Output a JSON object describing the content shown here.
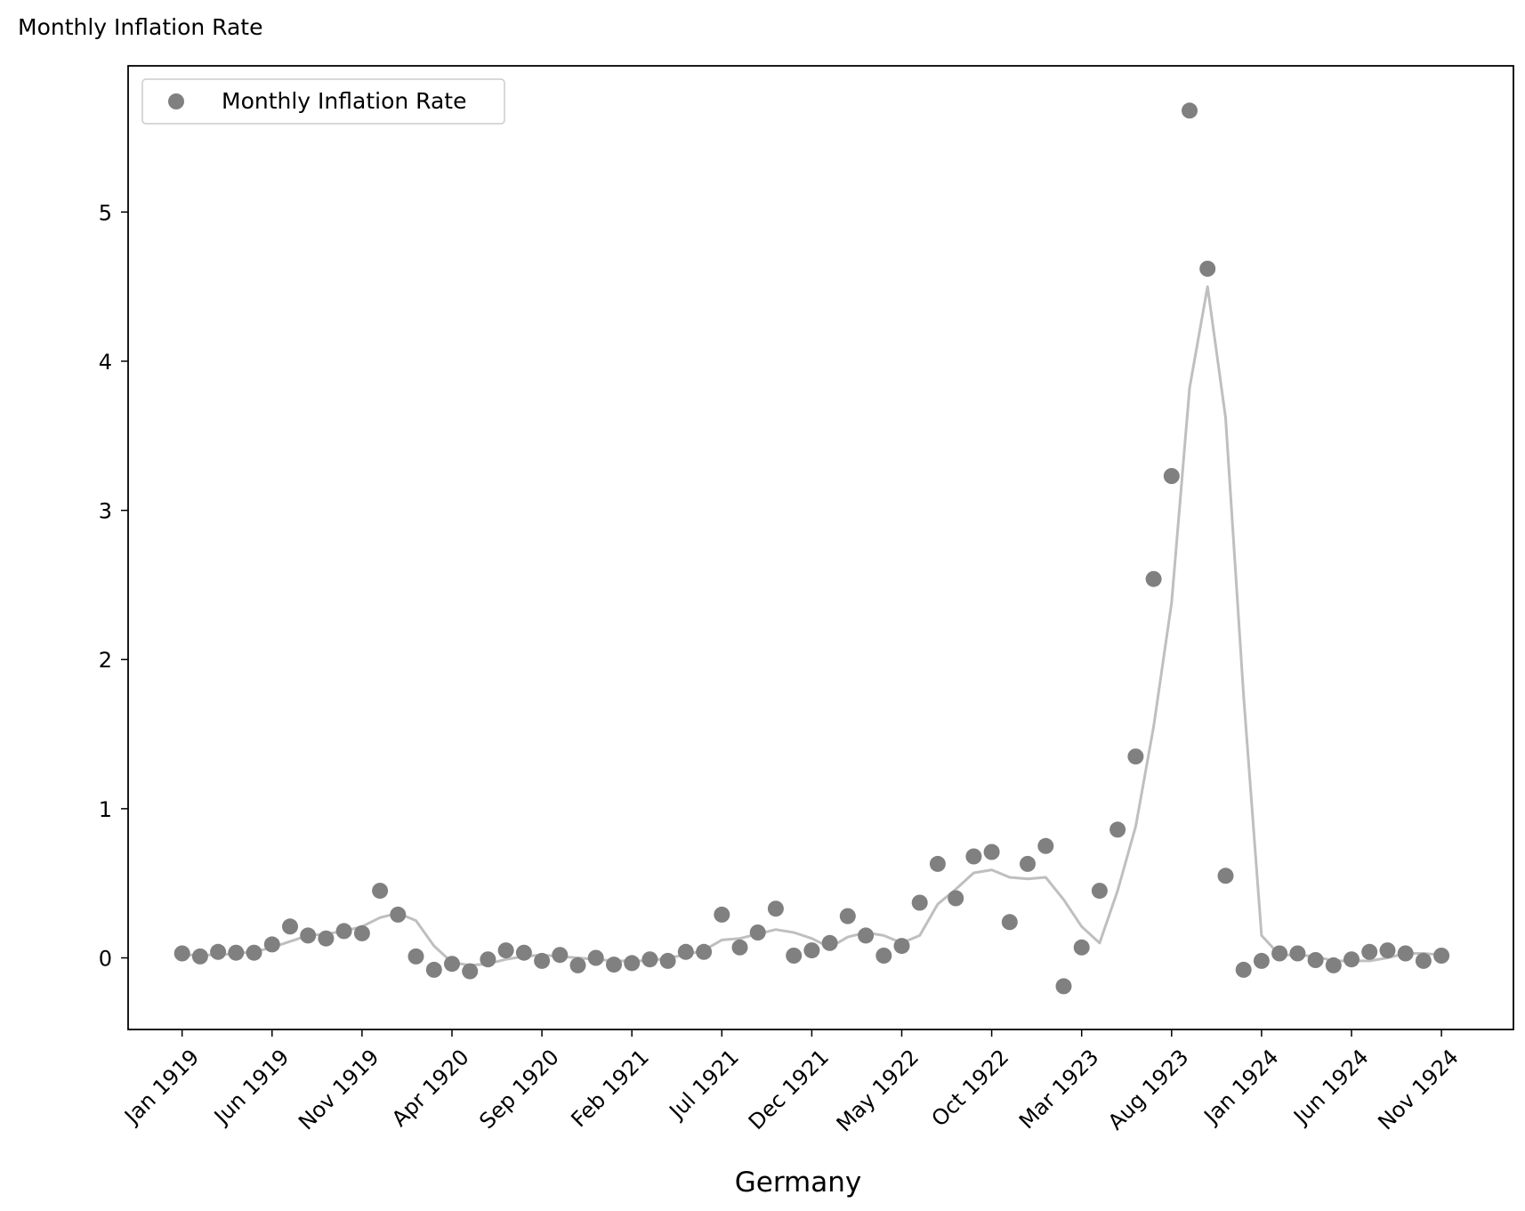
{
  "chart_data": {
    "type": "scatter",
    "title": "Monthly Inflation Rate",
    "xlabel": "Germany",
    "ylabel": "",
    "x_tick_labels": [
      "Jan 1919",
      "Jun 1919",
      "Nov 1919",
      "Apr 1920",
      "Sep 1920",
      "Feb 1921",
      "Jul 1921",
      "Dec 1921",
      "May 1922",
      "Oct 1922",
      "Mar 1923",
      "Aug 1923",
      "Jan 1924",
      "Jun 1924",
      "Nov 1924"
    ],
    "y_ticks": [
      0,
      1,
      2,
      3,
      4,
      5
    ],
    "ylim": [
      -0.48,
      5.98
    ],
    "xlim": [
      "1918-10",
      "1925-03"
    ],
    "grid": false,
    "legend": {
      "position": "top-left",
      "entries": [
        "Monthly Inflation Rate"
      ]
    },
    "colors": {
      "points": "#808080",
      "trend": "#bfbfbf",
      "axes": "#000000"
    },
    "series": [
      {
        "name": "Monthly Inflation Rate",
        "kind": "scatter",
        "x": [
          "1919-01",
          "1919-02",
          "1919-03",
          "1919-04",
          "1919-05",
          "1919-06",
          "1919-07",
          "1919-08",
          "1919-09",
          "1919-10",
          "1919-11",
          "1919-12",
          "1920-01",
          "1920-02",
          "1920-03",
          "1920-04",
          "1920-05",
          "1920-06",
          "1920-07",
          "1920-08",
          "1920-09",
          "1920-10",
          "1920-11",
          "1920-12",
          "1921-01",
          "1921-02",
          "1921-03",
          "1921-04",
          "1921-05",
          "1921-06",
          "1921-07",
          "1921-08",
          "1921-09",
          "1921-10",
          "1921-11",
          "1921-12",
          "1922-01",
          "1922-02",
          "1922-03",
          "1922-04",
          "1922-05",
          "1922-06",
          "1922-07",
          "1922-08",
          "1922-09",
          "1922-10",
          "1922-11",
          "1922-12",
          "1923-01",
          "1923-02",
          "1923-03",
          "1923-04",
          "1923-05",
          "1923-06",
          "1923-07",
          "1923-08",
          "1923-09",
          "1923-10",
          "1923-11",
          "1923-12",
          "1924-01",
          "1924-02",
          "1924-03",
          "1924-04",
          "1924-05",
          "1924-06",
          "1924-07",
          "1924-08",
          "1924-09",
          "1924-10",
          "1924-11",
          "1924-12"
        ],
        "y": [
          0.03,
          0.01,
          0.04,
          0.035,
          0.035,
          0.09,
          0.21,
          0.15,
          0.13,
          0.18,
          0.165,
          0.45,
          0.29,
          0.01,
          -0.08,
          -0.04,
          -0.09,
          -0.01,
          0.05,
          0.035,
          -0.02,
          0.02,
          -0.05,
          0.0,
          -0.045,
          -0.035,
          -0.01,
          -0.02,
          0.04,
          0.04,
          0.29,
          0.07,
          0.17,
          0.33,
          0.015,
          0.05,
          0.1,
          0.28,
          0.15,
          0.015,
          0.08,
          0.37,
          0.63,
          0.4,
          0.68,
          0.71,
          0.24,
          0.63,
          0.75,
          -0.19,
          0.07,
          0.45,
          0.86,
          1.35,
          2.54,
          3.23,
          5.68,
          4.62,
          0.55,
          -0.08,
          -0.02,
          0.03,
          0.03,
          -0.015,
          -0.05,
          -0.01,
          0.04,
          0.05,
          0.03,
          -0.02,
          0.015,
          null
        ]
      },
      {
        "name": "",
        "kind": "line",
        "x": [
          "1919-01",
          "1919-02",
          "1919-03",
          "1919-04",
          "1919-05",
          "1919-06",
          "1919-07",
          "1919-08",
          "1919-09",
          "1919-10",
          "1919-11",
          "1919-12",
          "1920-01",
          "1920-02",
          "1920-03",
          "1920-04",
          "1920-05",
          "1920-06",
          "1920-07",
          "1920-08",
          "1920-09",
          "1920-10",
          "1920-11",
          "1920-12",
          "1921-01",
          "1921-02",
          "1921-03",
          "1921-04",
          "1921-05",
          "1921-06",
          "1921-07",
          "1921-08",
          "1921-09",
          "1921-10",
          "1921-11",
          "1921-12",
          "1922-01",
          "1922-02",
          "1922-03",
          "1922-04",
          "1922-05",
          "1922-06",
          "1922-07",
          "1922-08",
          "1922-09",
          "1922-10",
          "1922-11",
          "1922-12",
          "1923-01",
          "1923-02",
          "1923-03",
          "1923-04",
          "1923-05",
          "1923-06",
          "1923-07",
          "1923-08",
          "1923-09",
          "1923-10",
          "1923-11",
          "1923-12",
          "1924-01",
          "1924-02",
          "1924-03",
          "1924-04",
          "1924-05",
          "1924-06",
          "1924-07",
          "1924-08",
          "1924-09",
          "1924-10",
          "1924-11",
          "1924-12"
        ],
        "y": [
          0.02,
          0.02,
          0.02,
          0.03,
          0.04,
          0.07,
          0.11,
          0.15,
          0.16,
          0.18,
          0.21,
          0.27,
          0.3,
          0.25,
          0.08,
          -0.03,
          -0.05,
          -0.04,
          -0.01,
          0.01,
          0.02,
          0.01,
          0.0,
          -0.01,
          -0.02,
          -0.02,
          -0.02,
          0.0,
          0.02,
          0.05,
          0.12,
          0.13,
          0.16,
          0.19,
          0.17,
          0.13,
          0.07,
          0.14,
          0.17,
          0.15,
          0.1,
          0.15,
          0.36,
          0.46,
          0.57,
          0.59,
          0.54,
          0.53,
          0.54,
          0.39,
          0.21,
          0.1,
          0.45,
          0.88,
          1.55,
          2.38,
          3.82,
          4.5,
          3.62,
          1.76,
          0.15,
          0.02,
          0.02,
          0.01,
          -0.02,
          -0.02,
          -0.02,
          0.0,
          0.03,
          0.03,
          0.02,
          null
        ]
      }
    ]
  }
}
